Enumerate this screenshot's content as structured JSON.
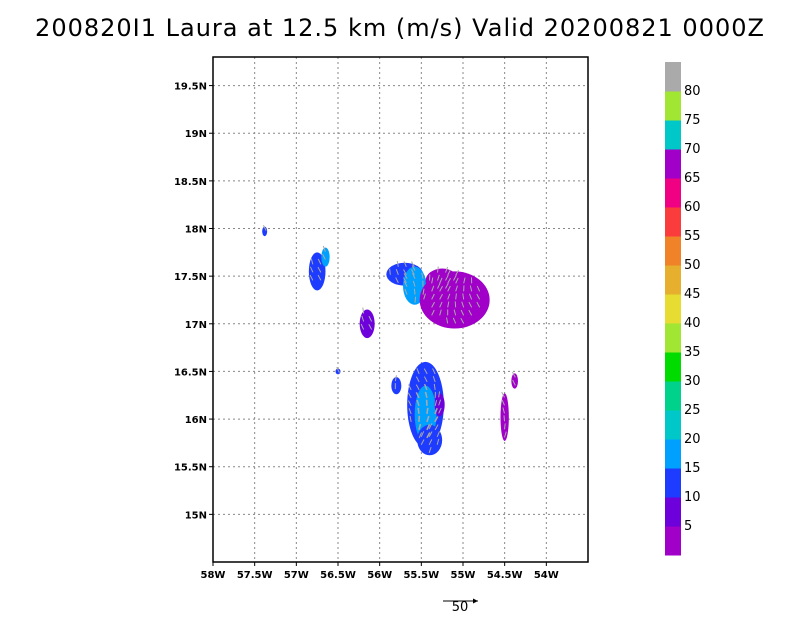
{
  "title": "200820I1 Laura at 12.5 km (m/s) Valid 20200821 0000Z",
  "map": {
    "lon_range": [
      -58.0,
      -53.5
    ],
    "lat_range": [
      14.5,
      19.8
    ],
    "x_ticks": [
      -58.0,
      -57.5,
      -57.0,
      -56.5,
      -56.0,
      -55.5,
      -55.0,
      -54.5,
      -54.0
    ],
    "x_tick_labels": [
      "58W",
      "57.5W",
      "57W",
      "56.5W",
      "56W",
      "55.5W",
      "55W",
      "54.5W",
      "54W"
    ],
    "y_ticks": [
      15.0,
      15.5,
      16.0,
      16.5,
      17.0,
      17.5,
      18.0,
      18.5,
      19.0,
      19.5
    ],
    "y_tick_labels": [
      "15N",
      "15.5N",
      "16N",
      "16.5N",
      "17N",
      "17.5N",
      "18N",
      "18.5N",
      "19N",
      "19.5N"
    ],
    "grid": true
  },
  "colorbar": {
    "levels": [
      5,
      10,
      15,
      20,
      25,
      30,
      35,
      40,
      45,
      50,
      55,
      60,
      65,
      70,
      75,
      80
    ],
    "labels": [
      "5",
      "10",
      "15",
      "20",
      "25",
      "30",
      "35",
      "40",
      "45",
      "50",
      "55",
      "60",
      "65",
      "70",
      "75",
      "80"
    ],
    "colors": [
      "#a000c8",
      "#6e00dc",
      "#1e3cff",
      "#00a0ff",
      "#00c8c8",
      "#00d28c",
      "#00dc00",
      "#a0e632",
      "#e6dc32",
      "#e6af2d",
      "#f08228",
      "#fa3c3c",
      "#f00082",
      "#a000c8",
      "#00c8c8",
      "#a0e632",
      "#aaaaaa"
    ]
  },
  "reference_vector": {
    "label": "50"
  },
  "wind_regions": [
    {
      "lon": -57.38,
      "lat": 17.97,
      "rlon": 0.03,
      "rlat": 0.05,
      "color": "#1e3cff"
    },
    {
      "lon": -56.75,
      "lat": 17.55,
      "rlon": 0.1,
      "rlat": 0.2,
      "color": "#1e3cff"
    },
    {
      "lon": -56.65,
      "lat": 17.7,
      "rlon": 0.05,
      "rlat": 0.1,
      "color": "#00a0ff"
    },
    {
      "lon": -56.15,
      "lat": 17.0,
      "rlon": 0.09,
      "rlat": 0.15,
      "color": "#6e00dc"
    },
    {
      "lon": -55.7,
      "lat": 17.52,
      "rlon": 0.22,
      "rlat": 0.12,
      "color": "#1e3cff"
    },
    {
      "lon": -55.58,
      "lat": 17.4,
      "rlon": 0.14,
      "rlat": 0.2,
      "color": "#00a0ff"
    },
    {
      "lon": -55.1,
      "lat": 17.25,
      "rlon": 0.42,
      "rlat": 0.3,
      "color": "#a000c8"
    },
    {
      "lon": -55.25,
      "lat": 17.45,
      "rlon": 0.2,
      "rlat": 0.13,
      "color": "#a000c8"
    },
    {
      "lon": -55.8,
      "lat": 16.35,
      "rlon": 0.06,
      "rlat": 0.09,
      "color": "#1e3cff"
    },
    {
      "lon": -55.45,
      "lat": 16.15,
      "rlon": 0.22,
      "rlat": 0.45,
      "color": "#1e3cff"
    },
    {
      "lon": -55.45,
      "lat": 16.05,
      "rlon": 0.13,
      "rlat": 0.3,
      "color": "#00a0ff"
    },
    {
      "lon": -55.4,
      "lat": 15.78,
      "rlon": 0.15,
      "rlat": 0.16,
      "color": "#1e3cff"
    },
    {
      "lon": -55.28,
      "lat": 16.15,
      "rlon": 0.06,
      "rlat": 0.12,
      "color": "#6e00dc"
    },
    {
      "lon": -54.38,
      "lat": 16.4,
      "rlon": 0.04,
      "rlat": 0.08,
      "color": "#a000c8"
    },
    {
      "lon": -54.5,
      "lat": 16.02,
      "rlon": 0.05,
      "rlat": 0.25,
      "color": "#a000c8"
    },
    {
      "lon": -56.5,
      "lat": 16.5,
      "rlon": 0.03,
      "rlat": 0.03,
      "color": "#1e3cff"
    }
  ]
}
